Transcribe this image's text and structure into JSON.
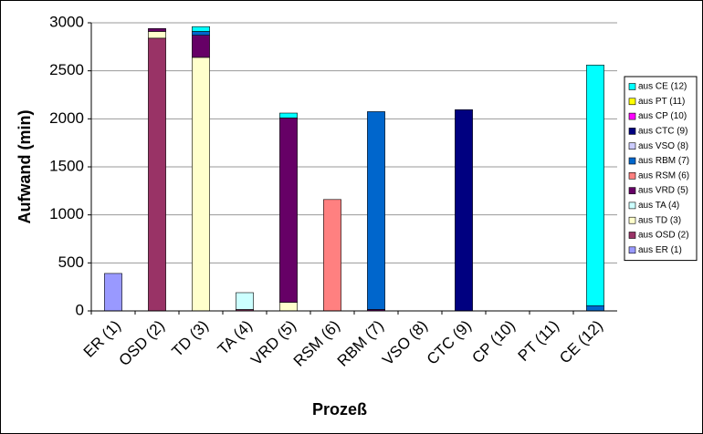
{
  "chart_data": {
    "type": "stacked-bar",
    "x_label": "Prozeß",
    "y_label": "Aufwand (min)",
    "categories": [
      "ER (1)",
      "OSD (2)",
      "TD (3)",
      "TA (4)",
      "VRD (5)",
      "RSM (6)",
      "RBM (7)",
      "VSO (8)",
      "CTC (9)",
      "CP (10)",
      "PT (11)",
      "CE (12)"
    ],
    "ylim": [
      0,
      3000
    ],
    "yticks": [
      0,
      500,
      1000,
      1500,
      2000,
      2500,
      3000
    ],
    "grid": true,
    "series": [
      {
        "name": "aus ER (1)",
        "color": "#9999ff",
        "values": [
          390,
          0,
          0,
          0,
          0,
          0,
          0,
          0,
          0,
          0,
          0,
          0
        ]
      },
      {
        "name": "aus OSD (2)",
        "color": "#993366",
        "values": [
          0,
          2840,
          0,
          15,
          0,
          0,
          0,
          0,
          0,
          0,
          0,
          0
        ]
      },
      {
        "name": "aus TD (3)",
        "color": "#ffffcc",
        "values": [
          0,
          70,
          2640,
          0,
          90,
          0,
          0,
          0,
          0,
          0,
          0,
          0
        ]
      },
      {
        "name": "aus TA (4)",
        "color": "#ccffff",
        "values": [
          0,
          0,
          0,
          175,
          0,
          0,
          0,
          0,
          0,
          0,
          0,
          0
        ]
      },
      {
        "name": "aus VRD (5)",
        "color": "#660066",
        "values": [
          0,
          30,
          230,
          0,
          1920,
          0,
          15,
          0,
          0,
          0,
          0,
          0
        ]
      },
      {
        "name": "aus RSM (6)",
        "color": "#ff8080",
        "values": [
          0,
          0,
          0,
          0,
          0,
          1160,
          0,
          0,
          0,
          0,
          0,
          0
        ]
      },
      {
        "name": "aus RBM (7)",
        "color": "#0066cc",
        "values": [
          0,
          0,
          40,
          0,
          0,
          0,
          2060,
          0,
          0,
          0,
          0,
          55
        ]
      },
      {
        "name": "aus VSO (8)",
        "color": "#ccccff",
        "values": [
          0,
          0,
          0,
          0,
          0,
          0,
          0,
          0,
          0,
          0,
          0,
          0
        ]
      },
      {
        "name": "aus CTC (9)",
        "color": "#000080",
        "values": [
          0,
          0,
          0,
          0,
          0,
          0,
          0,
          0,
          2095,
          0,
          0,
          0
        ]
      },
      {
        "name": "aus CP (10)",
        "color": "#ff00ff",
        "values": [
          0,
          0,
          0,
          0,
          0,
          0,
          0,
          0,
          0,
          0,
          0,
          0
        ]
      },
      {
        "name": "aus PT (11)",
        "color": "#ffff00",
        "values": [
          0,
          0,
          0,
          0,
          0,
          0,
          0,
          0,
          0,
          0,
          0,
          0
        ]
      },
      {
        "name": "aus CE (12)",
        "color": "#00ffff",
        "values": [
          0,
          0,
          50,
          0,
          50,
          0,
          0,
          0,
          0,
          0,
          0,
          2505
        ]
      }
    ]
  }
}
